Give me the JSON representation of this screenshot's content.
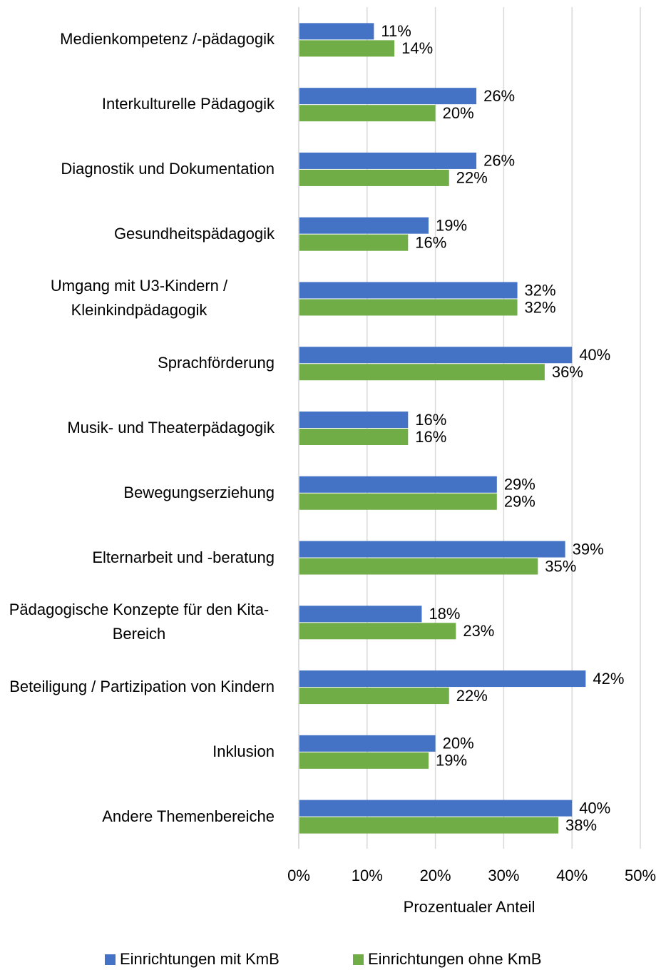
{
  "chart_data": {
    "type": "bar",
    "orientation": "horizontal",
    "categories": [
      "Medienkompetenz /-pädagogik",
      "Interkulturelle Pädagogik",
      "Diagnostik und Dokumentation",
      "Gesundheitspädagogik",
      "Umgang mit U3-Kindern / Kleinkindpädagogik",
      "Sprachförderung",
      "Musik- und Theaterpädagogik",
      "Bewegungserziehung",
      "Elternarbeit und -beratung",
      "Pädagogische Konzepte für den Kita-Bereich",
      "Beteiligung / Partizipation von Kindern",
      "Inklusion",
      "Andere Themenbereiche"
    ],
    "series": [
      {
        "name": "Einrichtungen mit KmB",
        "color": "#4472c4",
        "values": [
          11,
          26,
          26,
          19,
          32,
          40,
          16,
          29,
          39,
          18,
          42,
          20,
          40
        ],
        "value_labels": [
          "11%",
          "26%",
          "26%",
          "19%",
          "32%",
          "40%",
          "16%",
          "29%",
          "39%",
          "18%",
          "42%",
          "20%",
          "40%"
        ]
      },
      {
        "name": "Einrichtungen ohne KmB",
        "color": "#70ad47",
        "values": [
          14,
          20,
          22,
          16,
          32,
          36,
          16,
          29,
          35,
          23,
          22,
          19,
          38
        ],
        "value_labels": [
          "14%",
          "20%",
          "22%",
          "16%",
          "32%",
          "36%",
          "16%",
          "29%",
          "35%",
          "23%",
          "22%",
          "19%",
          "38%"
        ]
      }
    ],
    "xlabel": "Prozentualer Anteil",
    "xlim": [
      0,
      50
    ],
    "xticks": [
      {
        "value": 0,
        "label": "0%"
      },
      {
        "value": 10,
        "label": "10%"
      },
      {
        "value": 20,
        "label": "20%"
      },
      {
        "value": 30,
        "label": "30%"
      },
      {
        "value": 40,
        "label": "40%"
      },
      {
        "value": 50,
        "label": "50%"
      }
    ],
    "grid": true,
    "legend": "bottom"
  }
}
